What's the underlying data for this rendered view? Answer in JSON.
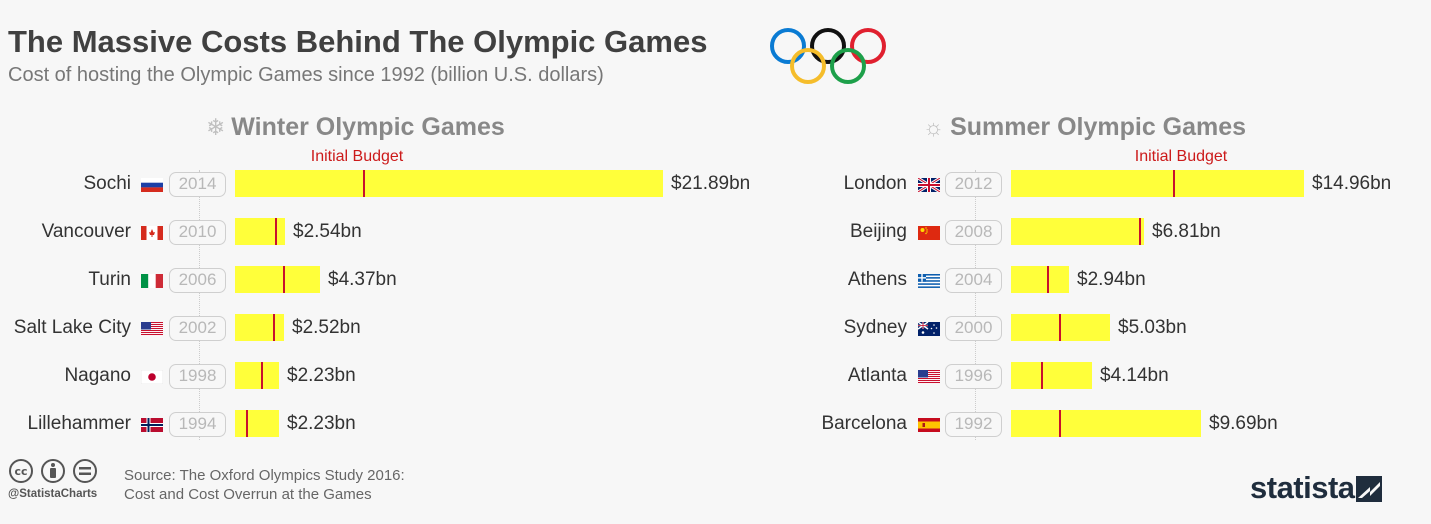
{
  "title": "The Massive Costs Behind The Olympic Games",
  "subtitle": "Cost of hosting the Olympic Games since 1992 (billion U.S. dollars)",
  "colors": {
    "bar": "#ffff3a",
    "budget_marker": "#c8102e",
    "title": "#404040"
  },
  "chart_data": [
    {
      "type": "bar",
      "orientation": "horizontal",
      "panel_title": "Winter Olympic Games",
      "panel_icon": "snowflake-icon",
      "annotation": "Initial Budget",
      "x_max": 21.89,
      "rows": [
        {
          "city": "Sochi",
          "flag": "russia-flag",
          "year": "2014",
          "value": 21.89,
          "value_label": "$21.89bn",
          "initial_budget": 6.6
        },
        {
          "city": "Vancouver",
          "flag": "canada-flag",
          "year": "2010",
          "value": 2.54,
          "value_label": "$2.54bn",
          "initial_budget": 2.1
        },
        {
          "city": "Turin",
          "flag": "italy-flag",
          "year": "2006",
          "value": 4.37,
          "value_label": "$4.37bn",
          "initial_budget": 2.5
        },
        {
          "city": "Salt Lake City",
          "flag": "usa-flag",
          "year": "2002",
          "value": 2.52,
          "value_label": "$2.52bn",
          "initial_budget": 2.0
        },
        {
          "city": "Nagano",
          "flag": "japan-flag",
          "year": "1998",
          "value": 2.23,
          "value_label": "$2.23bn",
          "initial_budget": 1.4
        },
        {
          "city": "Lillehammer",
          "flag": "norway-flag",
          "year": "1994",
          "value": 2.23,
          "value_label": "$2.23bn",
          "initial_budget": 0.6
        }
      ]
    },
    {
      "type": "bar",
      "orientation": "horizontal",
      "panel_title": "Summer Olympic Games",
      "panel_icon": "sun-icon",
      "annotation": "Initial Budget",
      "x_max": 14.96,
      "rows": [
        {
          "city": "London",
          "flag": "uk-flag",
          "year": "2012",
          "value": 14.96,
          "value_label": "$14.96bn",
          "initial_budget": 8.3
        },
        {
          "city": "Beijing",
          "flag": "china-flag",
          "year": "2008",
          "value": 6.81,
          "value_label": "$6.81bn",
          "initial_budget": 6.6
        },
        {
          "city": "Athens",
          "flag": "greece-flag",
          "year": "2004",
          "value": 2.94,
          "value_label": "$2.94bn",
          "initial_budget": 1.9
        },
        {
          "city": "Sydney",
          "flag": "australia-flag",
          "year": "2000",
          "value": 5.03,
          "value_label": "$5.03bn",
          "initial_budget": 2.5
        },
        {
          "city": "Atlanta",
          "flag": "usa-flag",
          "year": "1996",
          "value": 4.14,
          "value_label": "$4.14bn",
          "initial_budget": 1.6
        },
        {
          "city": "Barcelona",
          "flag": "spain-flag",
          "year": "1992",
          "value": 9.69,
          "value_label": "$9.69bn",
          "initial_budget": 2.5
        }
      ]
    }
  ],
  "footer": {
    "license_icons": [
      "cc-icon",
      "by-icon",
      "nd-icon"
    ],
    "handle": "@StatistaCharts",
    "source_line1": "Source: The Oxford Olympics Study 2016:",
    "source_line2": "Cost and Cost Overrun at the Games",
    "brand": "statista"
  }
}
